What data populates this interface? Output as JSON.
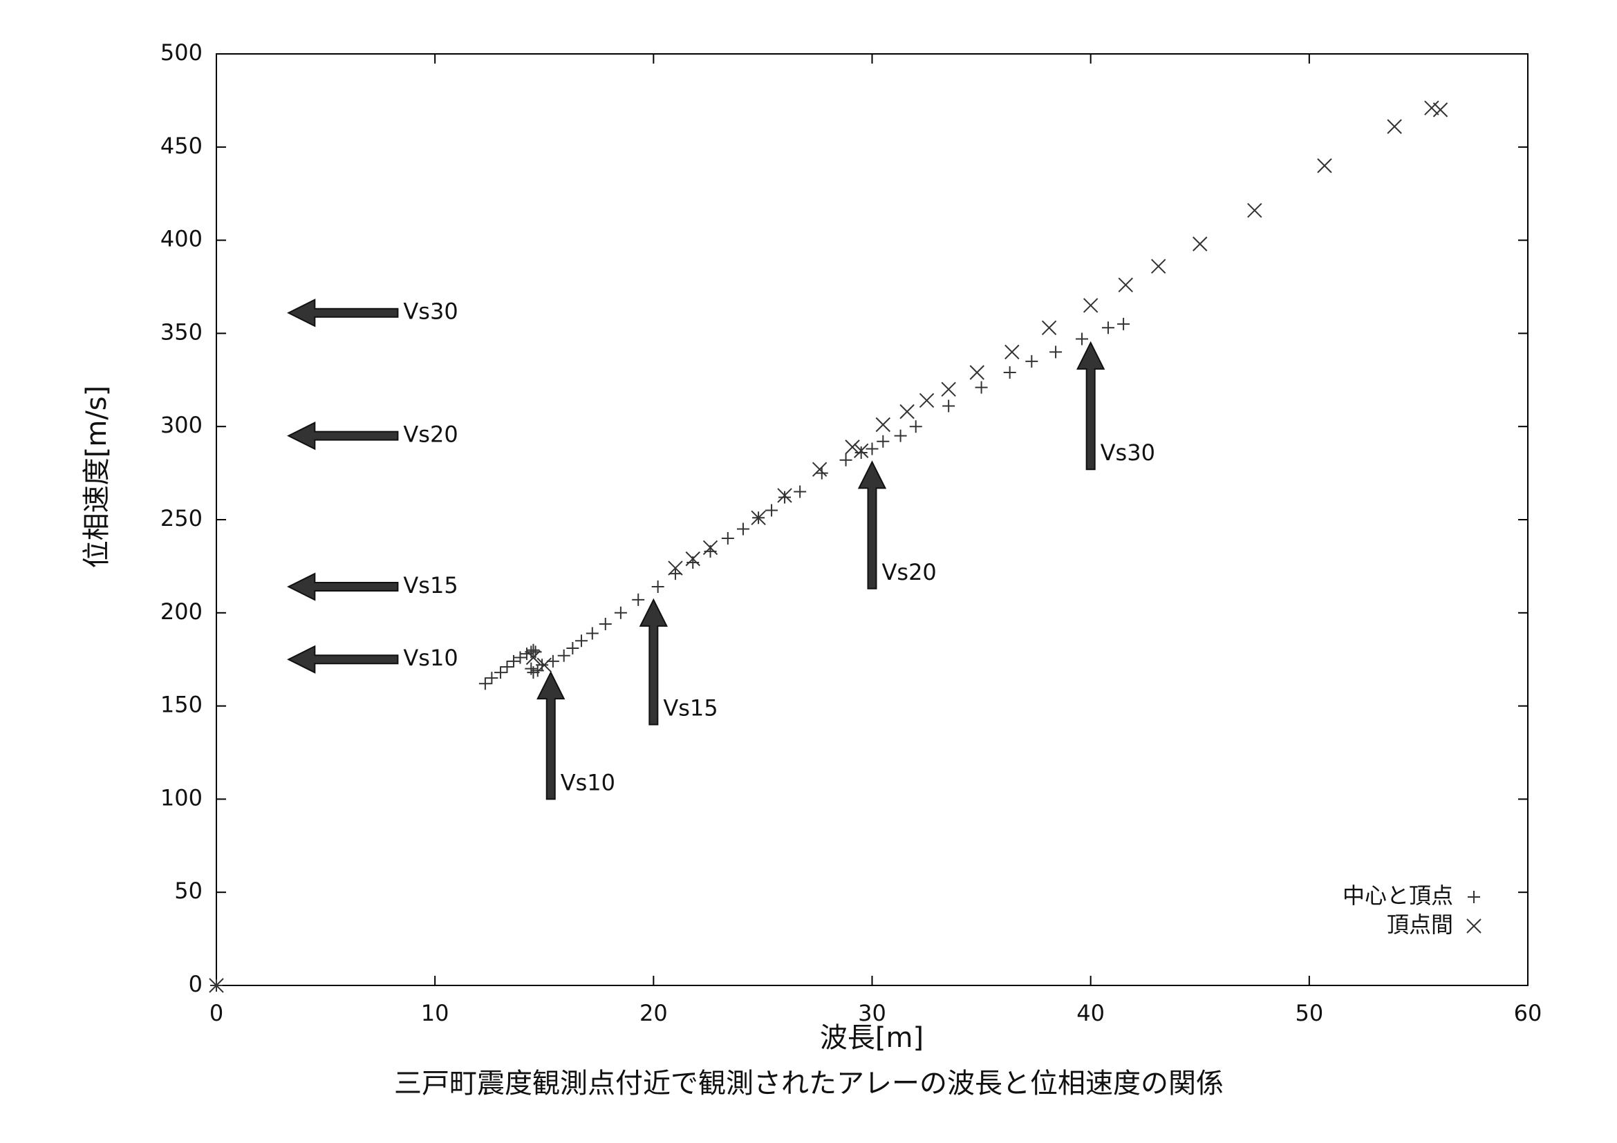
{
  "chart_data": {
    "type": "scatter",
    "title": "三戸町震度観測点付近で観測されたアレーの波長と位相速度の関係",
    "x_label": "波長[m]",
    "y_label": "位相速度[m/s]",
    "xlim": [
      0,
      60
    ],
    "xticks": [
      0,
      10,
      20,
      30,
      40,
      50,
      60
    ],
    "ylim": [
      0,
      500
    ],
    "yticks": [
      0,
      50,
      100,
      150,
      200,
      250,
      300,
      350,
      400,
      450,
      500
    ],
    "legend": "bottom right",
    "series": [
      {
        "name": "中心と頂点",
        "marker": "plus",
        "color": "#333333",
        "x": [
          0,
          12.3,
          12.6,
          13.0,
          13.3,
          13.6,
          13.9,
          14.2,
          14.4,
          14.5,
          14.6,
          14.4,
          14.5,
          14.7,
          14.9,
          15.4,
          15.9,
          16.3,
          16.7,
          17.2,
          17.8,
          18.5,
          19.3,
          20.2,
          21.0,
          21.8,
          22.6,
          23.4,
          24.1,
          24.8,
          25.4,
          26.0,
          26.7,
          27.7,
          28.8,
          29.5,
          30.0,
          30.5,
          31.3,
          32.0,
          33.5,
          35.0,
          36.3,
          37.3,
          38.4,
          39.6,
          40.8,
          41.5
        ],
        "values": [
          0,
          162,
          165,
          168,
          171,
          174,
          176,
          178,
          179,
          180,
          179,
          170,
          168,
          169,
          172,
          174,
          177,
          181,
          185,
          189,
          194,
          200,
          207,
          214,
          221,
          227,
          233,
          240,
          245,
          251,
          255,
          262,
          265,
          275,
          282,
          286,
          288,
          292,
          295,
          300,
          311,
          321,
          329,
          335,
          340,
          347,
          353,
          355
        ]
      },
      {
        "name": "頂点間",
        "marker": "cross",
        "color": "#333333",
        "x": [
          0,
          14.5,
          15.0,
          21.0,
          21.8,
          22.6,
          24.8,
          26.0,
          27.6,
          29.1,
          29.5,
          30.5,
          31.6,
          32.5,
          33.5,
          34.8,
          36.4,
          38.1,
          40.0,
          41.6,
          43.1,
          45.0,
          47.5,
          50.7,
          53.9,
          55.6,
          56.0
        ],
        "values": [
          0,
          176,
          172,
          224,
          229,
          235,
          251,
          263,
          277,
          289,
          287,
          301,
          308,
          314,
          320,
          329,
          340,
          353,
          365,
          376,
          386,
          398,
          416,
          440,
          461,
          471,
          470
        ]
      }
    ],
    "arrows": [
      {
        "label": "Vs30",
        "from": [
          8.3,
          361
        ],
        "to": [
          3.3,
          361
        ]
      },
      {
        "label": "Vs20",
        "from": [
          8.3,
          295
        ],
        "to": [
          3.3,
          295
        ]
      },
      {
        "label": "Vs15",
        "from": [
          8.3,
          214
        ],
        "to": [
          3.3,
          214
        ]
      },
      {
        "label": "Vs10",
        "from": [
          8.3,
          175
        ],
        "to": [
          3.3,
          175
        ]
      },
      {
        "label": "Vs10",
        "from": [
          15.3,
          100
        ],
        "to": [
          15.3,
          168
        ]
      },
      {
        "label": "Vs15",
        "from": [
          20.0,
          140
        ],
        "to": [
          20.0,
          207
        ]
      },
      {
        "label": "Vs20",
        "from": [
          30.0,
          213
        ],
        "to": [
          30.0,
          281
        ]
      },
      {
        "label": "Vs30",
        "from": [
          40.0,
          277
        ],
        "to": [
          40.0,
          345
        ]
      }
    ]
  }
}
